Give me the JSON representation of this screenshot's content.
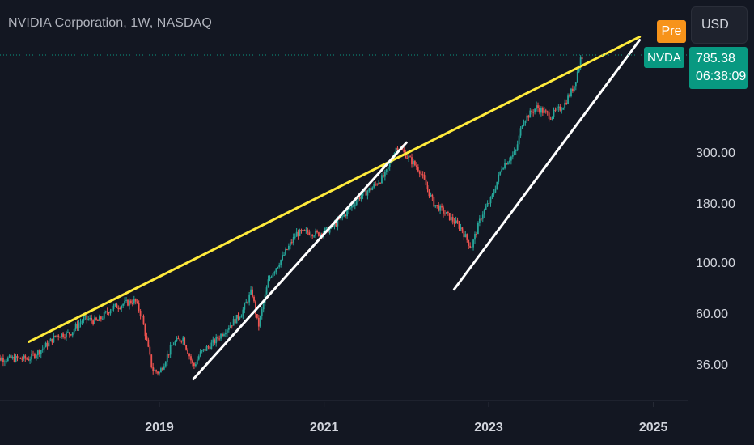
{
  "header": {
    "title": "NVIDIA Corporation, 1W, NASDAQ"
  },
  "currency_button": {
    "label": "USD"
  },
  "session_badge": {
    "label": "Pre",
    "color": "#f7931a"
  },
  "ticker_tag": {
    "label": "NVDA",
    "color": "#089981"
  },
  "last_price": {
    "value": "785.38",
    "countdown": "06:38:09",
    "color": "#089981"
  },
  "chart_data": {
    "type": "candlestick",
    "title": "NVIDIA Corporation, 1W, NASDAQ",
    "x_ticks": [
      "2019",
      "2021",
      "2023",
      "2025"
    ],
    "y_ticks": [
      "36.00",
      "60.00",
      "100.00",
      "180.00",
      "300.00"
    ],
    "y_scale": "log",
    "last_price": 785.38,
    "colors": {
      "up": "#26a69a",
      "down": "#ef5350",
      "yellow_trendline": "#ffeb3b",
      "white_trendline": "#ffffff"
    },
    "price_path": [
      [
        "2017-06-01",
        38
      ],
      [
        "2017-08-01",
        42
      ],
      [
        "2017-10-01",
        48
      ],
      [
        "2017-12-01",
        49
      ],
      [
        "2018-02-01",
        57
      ],
      [
        "2018-04-01",
        55
      ],
      [
        "2018-06-01",
        63
      ],
      [
        "2018-08-01",
        66
      ],
      [
        "2018-09-15",
        68
      ],
      [
        "2018-10-15",
        58
      ],
      [
        "2018-12-01",
        34
      ],
      [
        "2019-01-01",
        33
      ],
      [
        "2019-03-01",
        44
      ],
      [
        "2019-04-15",
        47
      ],
      [
        "2019-06-01",
        35
      ],
      [
        "2019-07-01",
        40
      ],
      [
        "2019-09-01",
        45
      ],
      [
        "2019-11-01",
        52
      ],
      [
        "2020-01-01",
        60
      ],
      [
        "2020-02-15",
        75
      ],
      [
        "2020-03-15",
        52
      ],
      [
        "2020-05-01",
        85
      ],
      [
        "2020-07-01",
        105
      ],
      [
        "2020-09-01",
        133
      ],
      [
        "2020-11-01",
        135
      ],
      [
        "2020-12-01",
        132
      ],
      [
        "2021-02-01",
        140
      ],
      [
        "2021-04-01",
        160
      ],
      [
        "2021-06-01",
        190
      ],
      [
        "2021-08-01",
        210
      ],
      [
        "2021-10-01",
        240
      ],
      [
        "2021-11-20",
        320
      ],
      [
        "2022-01-01",
        290
      ],
      [
        "2022-03-01",
        250
      ],
      [
        "2022-05-01",
        180
      ],
      [
        "2022-07-01",
        160
      ],
      [
        "2022-09-01",
        140
      ],
      [
        "2022-10-15",
        115
      ],
      [
        "2022-12-01",
        160
      ],
      [
        "2023-01-15",
        190
      ],
      [
        "2023-03-01",
        260
      ],
      [
        "2023-05-01",
        300
      ],
      [
        "2023-06-01",
        410
      ],
      [
        "2023-08-01",
        470
      ],
      [
        "2023-10-01",
        430
      ],
      [
        "2023-12-01",
        480
      ],
      [
        "2024-01-15",
        580
      ],
      [
        "2024-02-15",
        780
      ],
      [
        "2024-03-01",
        785.38
      ]
    ],
    "trendlines": [
      {
        "color": "yellow",
        "from": [
          "2017-06-01",
          45
        ],
        "to": [
          "2024-11-01",
          950
        ]
      },
      {
        "color": "white",
        "from": [
          "2019-06-01",
          31
        ],
        "to": [
          "2022-01-01",
          330
        ]
      },
      {
        "color": "white",
        "from": [
          "2022-08-01",
          76
        ],
        "to": [
          "2024-11-01",
          920
        ]
      }
    ]
  }
}
